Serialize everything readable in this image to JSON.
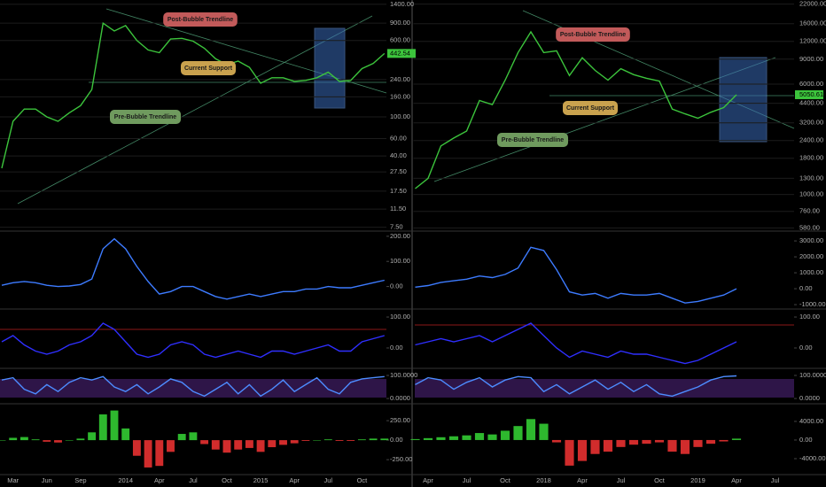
{
  "chart_data": [
    {
      "type": "line",
      "log_scale": true,
      "grid": true,
      "color": "#3cc43c",
      "categories": [
        null,
        "Mar",
        null,
        null,
        "Jun",
        null,
        null,
        "Sep",
        null,
        null,
        null,
        "2014",
        null,
        null,
        "Apr",
        null,
        null,
        "Jul",
        null,
        null,
        "Oct",
        null,
        null,
        "2015",
        null,
        null,
        "Apr",
        null,
        null,
        "Jul",
        null,
        null,
        "Oct",
        null,
        null
      ],
      "values": [
        30,
        90,
        120,
        120,
        100,
        90,
        110,
        130,
        190,
        900,
        750,
        850,
        600,
        480,
        450,
        620,
        630,
        590,
        500,
        390,
        340,
        370,
        320,
        220,
        250,
        250,
        230,
        235,
        250,
        285,
        230,
        235,
        310,
        350,
        442.54
      ],
      "value_labels": [
        null,
        null,
        null,
        null,
        null,
        null,
        null,
        null,
        null,
        null,
        null,
        null,
        null,
        null,
        null,
        null,
        null,
        null,
        null,
        null,
        null,
        null,
        null,
        null,
        null,
        null,
        null,
        null,
        null,
        null,
        null,
        null,
        null,
        null,
        "442.54"
      ],
      "ylim": [
        7,
        1550
      ],
      "yticks": [
        {
          "value": 1400,
          "label": "1400.00"
        },
        {
          "value": 900,
          "label": "900.00"
        },
        {
          "value": 600,
          "label": "600.00"
        },
        {
          "value": 240,
          "label": "240.00"
        },
        {
          "value": 160,
          "label": "160.00"
        },
        {
          "value": 100,
          "label": "100.00"
        },
        {
          "value": 60,
          "label": "60.00"
        },
        {
          "value": 40,
          "label": "40.00"
        },
        {
          "value": 27.5,
          "label": "27.50"
        },
        {
          "value": 17.5,
          "label": "17.50"
        },
        {
          "value": 11.5,
          "label": "11.50"
        },
        {
          "value": 7.5,
          "label": "7.50"
        }
      ],
      "annotations": [
        {
          "text": "Post-Bubble Trendline",
          "color": "#c25a5a"
        },
        {
          "text": "Current Support",
          "color": "#c9a24e"
        },
        {
          "text": "Pre-Bubble Trendline",
          "color": "#6f9a5e"
        }
      ],
      "panels": [
        {
          "type": "line",
          "color": "#3d7bff",
          "ylim": [
            -86,
            217
          ],
          "yticks": [
            {
              "value": 200,
              "label": "200.00"
            },
            {
              "value": 100,
              "label": "100.00"
            },
            {
              "value": 0,
              "label": "0.00"
            }
          ],
          "values": [
            5,
            15,
            20,
            15,
            5,
            0,
            2,
            8,
            30,
            150,
            190,
            150,
            80,
            20,
            -30,
            -20,
            0,
            0,
            -20,
            -40,
            -50,
            -40,
            -30,
            -40,
            -30,
            -20,
            -20,
            -10,
            -10,
            0,
            -5,
            -5,
            5,
            15,
            25
          ]
        },
        {
          "type": "line",
          "color": "#2f2fff",
          "ylim": [
            -63,
            123
          ],
          "yticks": [
            {
              "value": 100,
              "label": "100.00"
            },
            {
              "value": 0,
              "label": "0.00"
            }
          ],
          "values": [
            20,
            40,
            10,
            -10,
            -20,
            -10,
            10,
            20,
            40,
            80,
            60,
            20,
            -20,
            -30,
            -20,
            10,
            20,
            10,
            -20,
            -30,
            -20,
            -10,
            -20,
            -30,
            -10,
            -10,
            -20,
            -10,
            0,
            10,
            -10,
            -10,
            20,
            30,
            40
          ]
        },
        {
          "type": "line",
          "color": "#4d8cff",
          "ylim": [
            -19,
            123
          ],
          "yticks": [
            {
              "value": 100,
              "label": "100.0000"
            },
            {
              "value": 0,
              "label": "0.0000"
            }
          ],
          "values": [
            80,
            90,
            40,
            20,
            60,
            30,
            70,
            90,
            80,
            95,
            50,
            30,
            60,
            20,
            50,
            85,
            70,
            30,
            10,
            40,
            70,
            20,
            60,
            10,
            40,
            80,
            30,
            60,
            90,
            40,
            20,
            70,
            85,
            90,
            95
          ]
        },
        {
          "type": "bar",
          "color": "#2eb82e",
          "negative_color": "#d12c2c",
          "ylim": [
            -430,
            455
          ],
          "yticks": [
            {
              "value": 250,
              "label": "250.00"
            },
            {
              "value": 0,
              "label": "0.00"
            },
            {
              "value": -250,
              "label": "-250.00"
            }
          ],
          "values": [
            0,
            30,
            40,
            10,
            -20,
            -30,
            0,
            20,
            100,
            330,
            380,
            150,
            -200,
            -350,
            -330,
            -150,
            80,
            100,
            -50,
            -120,
            -160,
            -120,
            -100,
            -150,
            -90,
            -60,
            -40,
            -10,
            0,
            10,
            -10,
            -10,
            10,
            20,
            20
          ]
        }
      ]
    },
    {
      "type": "line",
      "log_scale": true,
      "grid": true,
      "color": "#3cc43c",
      "categories": [
        null,
        "Apr",
        null,
        null,
        "Jul",
        null,
        null,
        "Oct",
        null,
        null,
        "2018",
        null,
        null,
        "Apr",
        null,
        null,
        "Jul",
        null,
        null,
        "Oct",
        null,
        null,
        "2019",
        null,
        null,
        "Apr",
        null,
        null,
        "Jul"
      ],
      "values": [
        1100,
        1300,
        2200,
        2500,
        2800,
        4600,
        4300,
        6400,
        10000,
        14000,
        10000,
        10300,
        6900,
        9200,
        7500,
        6400,
        7700,
        7000,
        6600,
        6300,
        4000,
        3700,
        3450,
        3800,
        4100,
        5050.61,
        null,
        null,
        null
      ],
      "value_labels": [
        null,
        null,
        null,
        null,
        null,
        null,
        null,
        null,
        null,
        null,
        null,
        null,
        null,
        null,
        null,
        null,
        null,
        null,
        null,
        null,
        null,
        null,
        null,
        null,
        null,
        "5050.61",
        null,
        null,
        null
      ],
      "ylim": [
        560,
        23500
      ],
      "yticks": [
        {
          "value": 22000,
          "label": "22000.00"
        },
        {
          "value": 16000,
          "label": "16000.00"
        },
        {
          "value": 12000,
          "label": "12000.00"
        },
        {
          "value": 9000,
          "label": "9000.00"
        },
        {
          "value": 6000,
          "label": "6000.00"
        },
        {
          "value": 4400,
          "label": "4400.00"
        },
        {
          "value": 3200,
          "label": "3200.00"
        },
        {
          "value": 2400,
          "label": "2400.00"
        },
        {
          "value": 1800,
          "label": "1800.00"
        },
        {
          "value": 1300,
          "label": "1300.00"
        },
        {
          "value": 1000,
          "label": "1000.00"
        },
        {
          "value": 760,
          "label": "760.00"
        },
        {
          "value": 580,
          "label": "580.00"
        }
      ],
      "annotations": [
        {
          "text": "Post-Bubble Trendline",
          "color": "#c25a5a"
        },
        {
          "text": "Current Support",
          "color": "#c9a24e"
        },
        {
          "text": "Pre-Bubble Trendline",
          "color": "#6f9a5e"
        }
      ],
      "panels": [
        {
          "type": "line",
          "color": "#3d7bff",
          "ylim": [
            -1220,
            3560
          ],
          "yticks": [
            {
              "value": 3000,
              "label": "3000.00"
            },
            {
              "value": 2000,
              "label": "2000.00"
            },
            {
              "value": 1000,
              "label": "1000.00"
            },
            {
              "value": 0,
              "label": "0.00"
            },
            {
              "value": -1000,
              "label": "-1000.00"
            }
          ],
          "values": [
            100,
            200,
            400,
            500,
            600,
            800,
            700,
            900,
            1300,
            2600,
            2400,
            1200,
            -200,
            -400,
            -300,
            -600,
            -300,
            -400,
            -400,
            -300,
            -600,
            -900,
            -800,
            -600,
            -400,
            0,
            null,
            null,
            null
          ]
        },
        {
          "type": "line",
          "color": "#2f2fff",
          "ylim": [
            -63,
            123
          ],
          "yticks": [
            {
              "value": 100,
              "label": "100.00"
            },
            {
              "value": 0,
              "label": "0.00"
            }
          ],
          "values": [
            10,
            20,
            30,
            20,
            30,
            40,
            20,
            40,
            60,
            80,
            40,
            0,
            -30,
            -10,
            -20,
            -30,
            -10,
            -20,
            -20,
            -30,
            -40,
            -50,
            -40,
            -20,
            0,
            20,
            null,
            null,
            null
          ]
        },
        {
          "type": "line",
          "color": "#4d8cff",
          "ylim": [
            -19,
            123
          ],
          "yticks": [
            {
              "value": 100,
              "label": "100.0000"
            },
            {
              "value": 0,
              "label": "0.0000"
            }
          ],
          "values": [
            60,
            90,
            80,
            40,
            70,
            90,
            50,
            80,
            95,
            90,
            30,
            60,
            20,
            50,
            80,
            40,
            70,
            30,
            60,
            20,
            10,
            30,
            50,
            80,
            95,
            98,
            null,
            null,
            null
          ]
        },
        {
          "type": "bar",
          "color": "#2eb82e",
          "negative_color": "#d12c2c",
          "ylim": [
            -7240,
            7600
          ],
          "yticks": [
            {
              "value": 4000,
              "label": "4000.00"
            },
            {
              "value": 0,
              "label": "0.00"
            },
            {
              "value": -4000,
              "label": "-4000.00"
            }
          ],
          "values": [
            200,
            400,
            600,
            800,
            1000,
            1500,
            1200,
            2000,
            3000,
            4500,
            3500,
            -500,
            -5500,
            -4500,
            -3000,
            -2500,
            -1500,
            -1000,
            -800,
            -500,
            -2500,
            -3000,
            -1500,
            -800,
            -300,
            300,
            null,
            null,
            null
          ]
        }
      ]
    }
  ]
}
